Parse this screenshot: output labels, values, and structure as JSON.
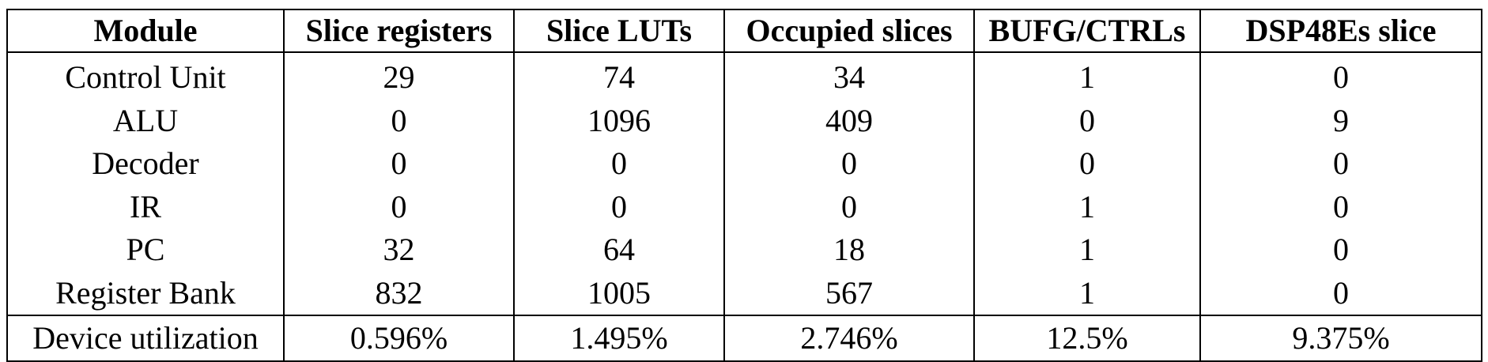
{
  "table": {
    "headers": [
      "Module",
      "Slice registers",
      "Slice LUTs",
      "Occupied slices",
      "BUFG/CTRLs",
      "DSP48Es slice"
    ],
    "rows": [
      [
        "Control Unit",
        "29",
        "74",
        "34",
        "1",
        "0"
      ],
      [
        "ALU",
        "0",
        "1096",
        "409",
        "0",
        "9"
      ],
      [
        "Decoder",
        "0",
        "0",
        "0",
        "0",
        "0"
      ],
      [
        "IR",
        "0",
        "0",
        "0",
        "1",
        "0"
      ],
      [
        "PC",
        "32",
        "64",
        "18",
        "1",
        "0"
      ],
      [
        "Register Bank",
        "832",
        "1005",
        "567",
        "1",
        "0"
      ]
    ],
    "footer": [
      "Device utilization",
      "0.596%",
      "1.495%",
      "2.746%",
      "12.5%",
      "9.375%"
    ]
  }
}
